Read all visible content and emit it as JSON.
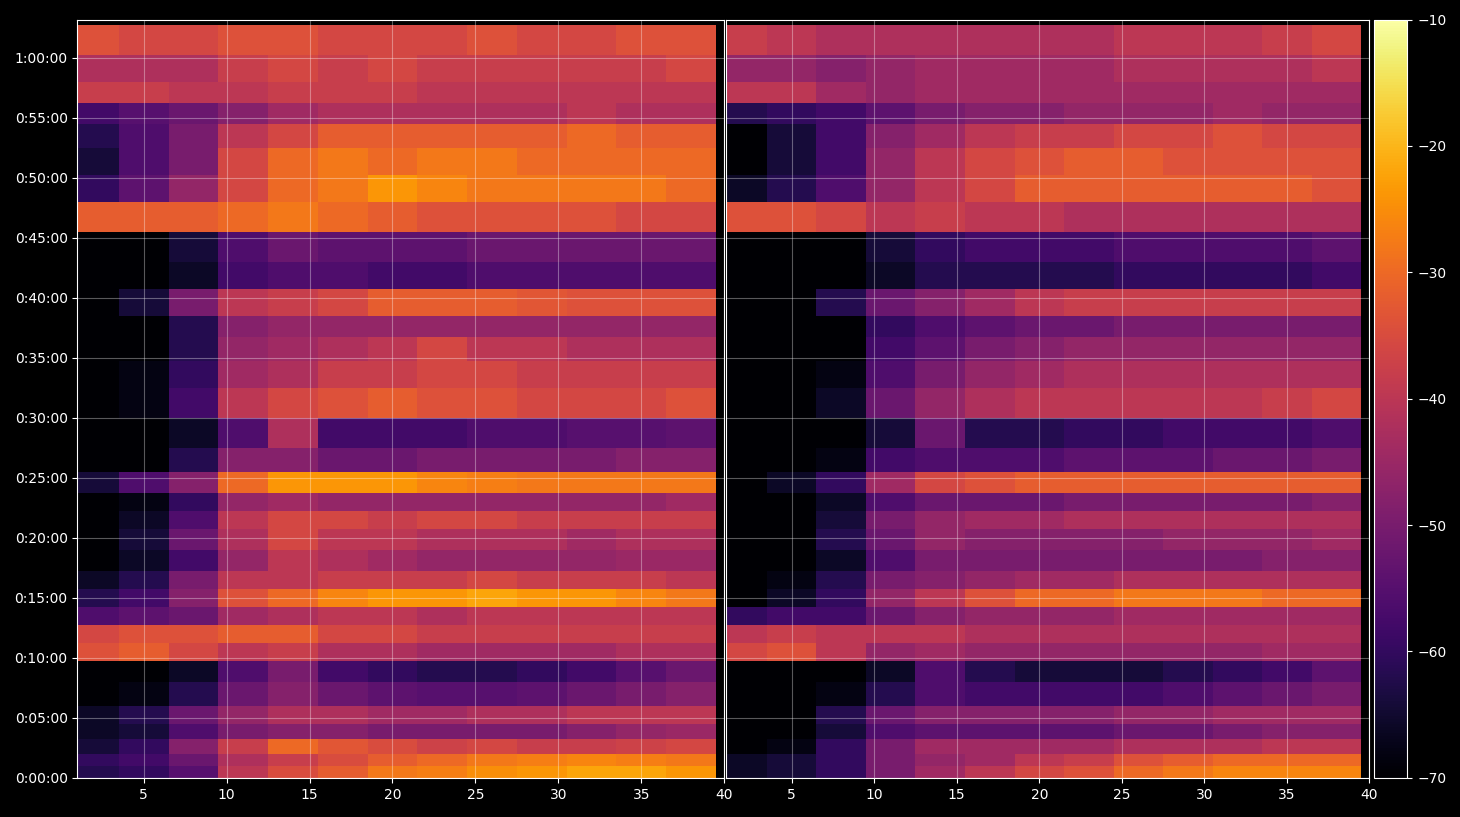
{
  "chart_data": [
    {
      "type": "heatmap",
      "color": "inferno",
      "grid": true,
      "x": [
        2,
        5,
        8,
        11,
        14,
        17,
        20,
        23,
        26,
        29,
        32,
        35,
        38
      ],
      "y": [
        30,
        90,
        150,
        240,
        300,
        420,
        540,
        630,
        720,
        810,
        900,
        990,
        1080,
        1200,
        1290,
        1380,
        1470,
        1590,
        1710,
        1890,
        2010,
        2160,
        2250,
        2370,
        2520,
        2640,
        2820,
        2940,
        3090,
        3210,
        3330,
        3420,
        3540,
        3690
      ],
      "xlim": [
        1,
        40
      ],
      "ylim": [
        0,
        3790
      ],
      "xticks": [
        5,
        10,
        15,
        20,
        25,
        30,
        35,
        40
      ],
      "yticks": [
        {
          "value": 0,
          "label": "0:00:00"
        },
        {
          "value": 300,
          "label": "0:05:00"
        },
        {
          "value": 600,
          "label": "0:10:00"
        },
        {
          "value": 900,
          "label": "0:15:00"
        },
        {
          "value": 1200,
          "label": "0:20:00"
        },
        {
          "value": 1500,
          "label": "0:25:00"
        },
        {
          "value": 1800,
          "label": "0:30:00"
        },
        {
          "value": 2100,
          "label": "0:35:00"
        },
        {
          "value": 2400,
          "label": "0:40:00"
        },
        {
          "value": 2700,
          "label": "0:45:00"
        },
        {
          "value": 3000,
          "label": "0:50:00"
        },
        {
          "value": 3300,
          "label": "0:55:00"
        },
        {
          "value": 3600,
          "label": "1:00:00"
        }
      ],
      "cells": [
        [
          -62,
          -60,
          -55,
          -40,
          -35,
          -32,
          -28,
          -27,
          -25,
          -24,
          -22,
          -22,
          -24
        ],
        [
          -60,
          -58,
          -52,
          -42,
          -38,
          -35,
          -32,
          -30,
          -28,
          -27,
          -26,
          -27,
          -28
        ],
        [
          -64,
          -60,
          -48,
          -38,
          -30,
          -33,
          -35,
          -37,
          -36,
          -38,
          -38,
          -37,
          -36
        ],
        [
          -66,
          -64,
          -56,
          -50,
          -48,
          -48,
          -50,
          -50,
          -50,
          -50,
          -48,
          -46,
          -45
        ],
        [
          -66,
          -62,
          -52,
          -46,
          -42,
          -42,
          -44,
          -44,
          -42,
          -42,
          -40,
          -40,
          -40
        ],
        [
          -70,
          -68,
          -62,
          -52,
          -48,
          -52,
          -54,
          -55,
          -55,
          -54,
          -52,
          -50,
          -48
        ],
        [
          -70,
          -70,
          -66,
          -56,
          -50,
          -58,
          -60,
          -62,
          -62,
          -60,
          -58,
          -55,
          -52
        ],
        [
          -34,
          -32,
          -36,
          -40,
          -38,
          -42,
          -42,
          -44,
          -44,
          -44,
          -44,
          -42,
          -42
        ],
        [
          -36,
          -34,
          -34,
          -32,
          -32,
          -36,
          -36,
          -38,
          -38,
          -38,
          -38,
          -38,
          -38
        ],
        [
          -56,
          -54,
          -52,
          -44,
          -42,
          -40,
          -40,
          -42,
          -40,
          -40,
          -40,
          -40,
          -40
        ],
        [
          -62,
          -58,
          -48,
          -34,
          -30,
          -26,
          -24,
          -24,
          -22,
          -24,
          -24,
          -26,
          -28
        ],
        [
          -66,
          -62,
          -50,
          -40,
          -40,
          -38,
          -38,
          -38,
          -36,
          -38,
          -38,
          -38,
          -40
        ],
        [
          -70,
          -66,
          -58,
          -46,
          -40,
          -42,
          -44,
          -46,
          -46,
          -46,
          -46,
          -45,
          -45
        ],
        [
          -70,
          -64,
          -52,
          -42,
          -36,
          -40,
          -40,
          -42,
          -42,
          -42,
          -44,
          -42,
          -42
        ],
        [
          -70,
          -66,
          -56,
          -40,
          -36,
          -36,
          -38,
          -36,
          -36,
          -38,
          -38,
          -38,
          -38
        ],
        [
          -70,
          -68,
          -60,
          -46,
          -44,
          -46,
          -46,
          -46,
          -46,
          -46,
          -46,
          -46,
          -44
        ],
        [
          -64,
          -56,
          -48,
          -30,
          -24,
          -24,
          -24,
          -26,
          -27,
          -28,
          -28,
          -28,
          -28
        ],
        [
          -70,
          -70,
          -62,
          -48,
          -48,
          -52,
          -52,
          -50,
          -50,
          -50,
          -50,
          -48,
          -48
        ],
        [
          -70,
          -70,
          -66,
          -56,
          -42,
          -58,
          -58,
          -58,
          -56,
          -56,
          -55,
          -55,
          -54
        ],
        [
          -70,
          -68,
          -58,
          -40,
          -36,
          -34,
          -32,
          -34,
          -34,
          -36,
          -36,
          -36,
          -34
        ],
        [
          -70,
          -68,
          -60,
          -44,
          -42,
          -38,
          -38,
          -36,
          -36,
          -38,
          -38,
          -38,
          -38
        ],
        [
          -70,
          -70,
          -62,
          -46,
          -44,
          -42,
          -40,
          -36,
          -40,
          -40,
          -42,
          -42,
          -42
        ],
        [
          -70,
          -70,
          -62,
          -48,
          -46,
          -46,
          -46,
          -46,
          -46,
          -46,
          -46,
          -46,
          -46
        ],
        [
          -70,
          -64,
          -50,
          -40,
          -38,
          -36,
          -32,
          -32,
          -32,
          -33,
          -34,
          -34,
          -34
        ],
        [
          -70,
          -70,
          -66,
          -58,
          -56,
          -56,
          -58,
          -58,
          -56,
          -56,
          -56,
          -56,
          -56
        ],
        [
          -70,
          -70,
          -64,
          -56,
          -52,
          -54,
          -54,
          -54,
          -52,
          -52,
          -52,
          -52,
          -52
        ],
        [
          -32,
          -32,
          -32,
          -30,
          -28,
          -30,
          -32,
          -34,
          -34,
          -34,
          -34,
          -36,
          -36
        ],
        [
          -60,
          -54,
          -46,
          -36,
          -30,
          -28,
          -24,
          -26,
          -28,
          -28,
          -28,
          -28,
          -30
        ],
        [
          -64,
          -56,
          -50,
          -36,
          -30,
          -28,
          -30,
          -28,
          -28,
          -30,
          -30,
          -30,
          -30
        ],
        [
          -62,
          -56,
          -50,
          -40,
          -36,
          -32,
          -32,
          -32,
          -32,
          -32,
          -30,
          -32,
          -32
        ],
        [
          -58,
          -55,
          -52,
          -48,
          -44,
          -42,
          -42,
          -42,
          -42,
          -42,
          -40,
          -42,
          -42
        ],
        [
          -38,
          -38,
          -40,
          -40,
          -38,
          -38,
          -38,
          -40,
          -40,
          -40,
          -40,
          -40,
          -40
        ],
        [
          -42,
          -42,
          -42,
          -38,
          -36,
          -38,
          -36,
          -38,
          -38,
          -38,
          -38,
          -38,
          -36
        ],
        [
          -34,
          -36,
          -36,
          -34,
          -34,
          -36,
          -36,
          -36,
          -34,
          -36,
          -36,
          -34,
          -34
        ]
      ]
    },
    {
      "type": "heatmap",
      "color": "inferno",
      "grid": true,
      "tick_labels": "x",
      "x": [
        2,
        5,
        8,
        11,
        14,
        17,
        20,
        23,
        26,
        29,
        32,
        35,
        38
      ],
      "y": [
        30,
        90,
        150,
        240,
        300,
        420,
        540,
        630,
        720,
        810,
        900,
        990,
        1080,
        1200,
        1290,
        1380,
        1470,
        1590,
        1710,
        1890,
        2010,
        2160,
        2250,
        2370,
        2520,
        2640,
        2820,
        2940,
        3090,
        3210,
        3330,
        3420,
        3540,
        3690
      ],
      "xlim": [
        1,
        40
      ],
      "ylim": [
        0,
        3790
      ],
      "xticks": [
        5,
        10,
        15,
        20,
        25,
        30,
        35,
        40
      ],
      "yticks": [
        0,
        300,
        600,
        900,
        1200,
        1500,
        1800,
        2100,
        2400,
        2700,
        3000,
        3300,
        3600
      ],
      "colorbar_range": [
        -70,
        -10
      ],
      "colorbar_ticks": [
        {
          "value": -70,
          "label": "−70"
        },
        {
          "value": -60,
          "label": "−60"
        },
        {
          "value": -50,
          "label": "−50"
        },
        {
          "value": -40,
          "label": "−40"
        },
        {
          "value": -30,
          "label": "−30"
        },
        {
          "value": -20,
          "label": "−20"
        },
        {
          "value": -10,
          "label": "−10"
        }
      ],
      "cells": [
        [
          -66,
          -64,
          -60,
          -50,
          -44,
          -40,
          -36,
          -34,
          -30,
          -28,
          -26,
          -26,
          -26
        ],
        [
          -66,
          -64,
          -60,
          -50,
          -46,
          -44,
          -40,
          -38,
          -34,
          -32,
          -30,
          -30,
          -30
        ],
        [
          -70,
          -68,
          -60,
          -50,
          -44,
          -44,
          -44,
          -44,
          -42,
          -42,
          -42,
          -40,
          -40
        ],
        [
          -70,
          -70,
          -64,
          -56,
          -54,
          -54,
          -54,
          -54,
          -52,
          -52,
          -50,
          -48,
          -48
        ],
        [
          -70,
          -70,
          -62,
          -52,
          -48,
          -48,
          -48,
          -48,
          -46,
          -46,
          -44,
          -44,
          -44
        ],
        [
          -70,
          -70,
          -68,
          -62,
          -56,
          -58,
          -58,
          -58,
          -58,
          -56,
          -54,
          -52,
          -50
        ],
        [
          -70,
          -70,
          -70,
          -66,
          -56,
          -62,
          -64,
          -64,
          -64,
          -62,
          -60,
          -58,
          -54
        ],
        [
          -36,
          -34,
          -40,
          -46,
          -44,
          -46,
          -46,
          -46,
          -46,
          -46,
          -46,
          -44,
          -44
        ],
        [
          -40,
          -38,
          -40,
          -40,
          -40,
          -42,
          -42,
          -42,
          -42,
          -42,
          -42,
          -42,
          -42
        ],
        [
          -60,
          -58,
          -58,
          -52,
          -48,
          -46,
          -46,
          -46,
          -44,
          -44,
          -44,
          -44,
          -44
        ],
        [
          -70,
          -66,
          -60,
          -46,
          -40,
          -34,
          -30,
          -30,
          -28,
          -28,
          -28,
          -30,
          -30
        ],
        [
          -70,
          -68,
          -62,
          -50,
          -48,
          -46,
          -44,
          -44,
          -42,
          -42,
          -42,
          -42,
          -42
        ],
        [
          -70,
          -70,
          -66,
          -56,
          -50,
          -50,
          -50,
          -50,
          -50,
          -50,
          -50,
          -48,
          -48
        ],
        [
          -70,
          -70,
          -62,
          -52,
          -46,
          -48,
          -48,
          -48,
          -48,
          -46,
          -46,
          -46,
          -44
        ],
        [
          -70,
          -70,
          -64,
          -50,
          -46,
          -44,
          -44,
          -42,
          -42,
          -42,
          -42,
          -42,
          -42
        ],
        [
          -70,
          -70,
          -66,
          -56,
          -52,
          -52,
          -52,
          -50,
          -50,
          -50,
          -50,
          -50,
          -48
        ],
        [
          -70,
          -66,
          -60,
          -44,
          -36,
          -34,
          -32,
          -32,
          -32,
          -32,
          -32,
          -32,
          -32
        ],
        [
          -70,
          -70,
          -68,
          -58,
          -56,
          -56,
          -56,
          -54,
          -54,
          -54,
          -52,
          -52,
          -50
        ],
        [
          -70,
          -70,
          -70,
          -64,
          -52,
          -62,
          -62,
          -60,
          -60,
          -58,
          -58,
          -58,
          -56
        ],
        [
          -70,
          -70,
          -66,
          -52,
          -46,
          -42,
          -40,
          -40,
          -40,
          -40,
          -40,
          -38,
          -36
        ],
        [
          -70,
          -70,
          -68,
          -56,
          -50,
          -46,
          -44,
          -42,
          -42,
          -42,
          -42,
          -42,
          -42
        ],
        [
          -70,
          -70,
          -70,
          -58,
          -54,
          -50,
          -48,
          -46,
          -46,
          -46,
          -46,
          -46,
          -46
        ],
        [
          -70,
          -70,
          -70,
          -60,
          -56,
          -54,
          -52,
          -52,
          -50,
          -50,
          -50,
          -50,
          -50
        ],
        [
          -70,
          -70,
          -62,
          -52,
          -48,
          -44,
          -40,
          -38,
          -38,
          -38,
          -38,
          -38,
          -38
        ],
        [
          -70,
          -70,
          -70,
          -66,
          -62,
          -62,
          -62,
          -62,
          -60,
          -60,
          -60,
          -60,
          -58
        ],
        [
          -70,
          -70,
          -70,
          -64,
          -60,
          -58,
          -58,
          -58,
          -56,
          -56,
          -56,
          -56,
          -54
        ],
        [
          -34,
          -34,
          -36,
          -40,
          -38,
          -40,
          -40,
          -42,
          -42,
          -42,
          -42,
          -42,
          -42
        ],
        [
          -66,
          -62,
          -56,
          -46,
          -40,
          -36,
          -32,
          -32,
          -32,
          -32,
          -32,
          -32,
          -34
        ],
        [
          -70,
          -64,
          -58,
          -46,
          -40,
          -36,
          -34,
          -32,
          -32,
          -34,
          -34,
          -34,
          -34
        ],
        [
          -70,
          -64,
          -58,
          -48,
          -44,
          -40,
          -38,
          -38,
          -36,
          -36,
          -34,
          -36,
          -36
        ],
        [
          -62,
          -60,
          -58,
          -54,
          -50,
          -48,
          -48,
          -46,
          -46,
          -46,
          -44,
          -46,
          -46
        ],
        [
          -40,
          -40,
          -44,
          -46,
          -44,
          -44,
          -44,
          -44,
          -44,
          -44,
          -44,
          -44,
          -44
        ],
        [
          -46,
          -46,
          -48,
          -46,
          -44,
          -44,
          -44,
          -44,
          -42,
          -42,
          -42,
          -42,
          -40
        ],
        [
          -38,
          -40,
          -42,
          -42,
          -42,
          -42,
          -42,
          -42,
          -40,
          -40,
          -40,
          -38,
          -36
        ]
      ]
    }
  ]
}
